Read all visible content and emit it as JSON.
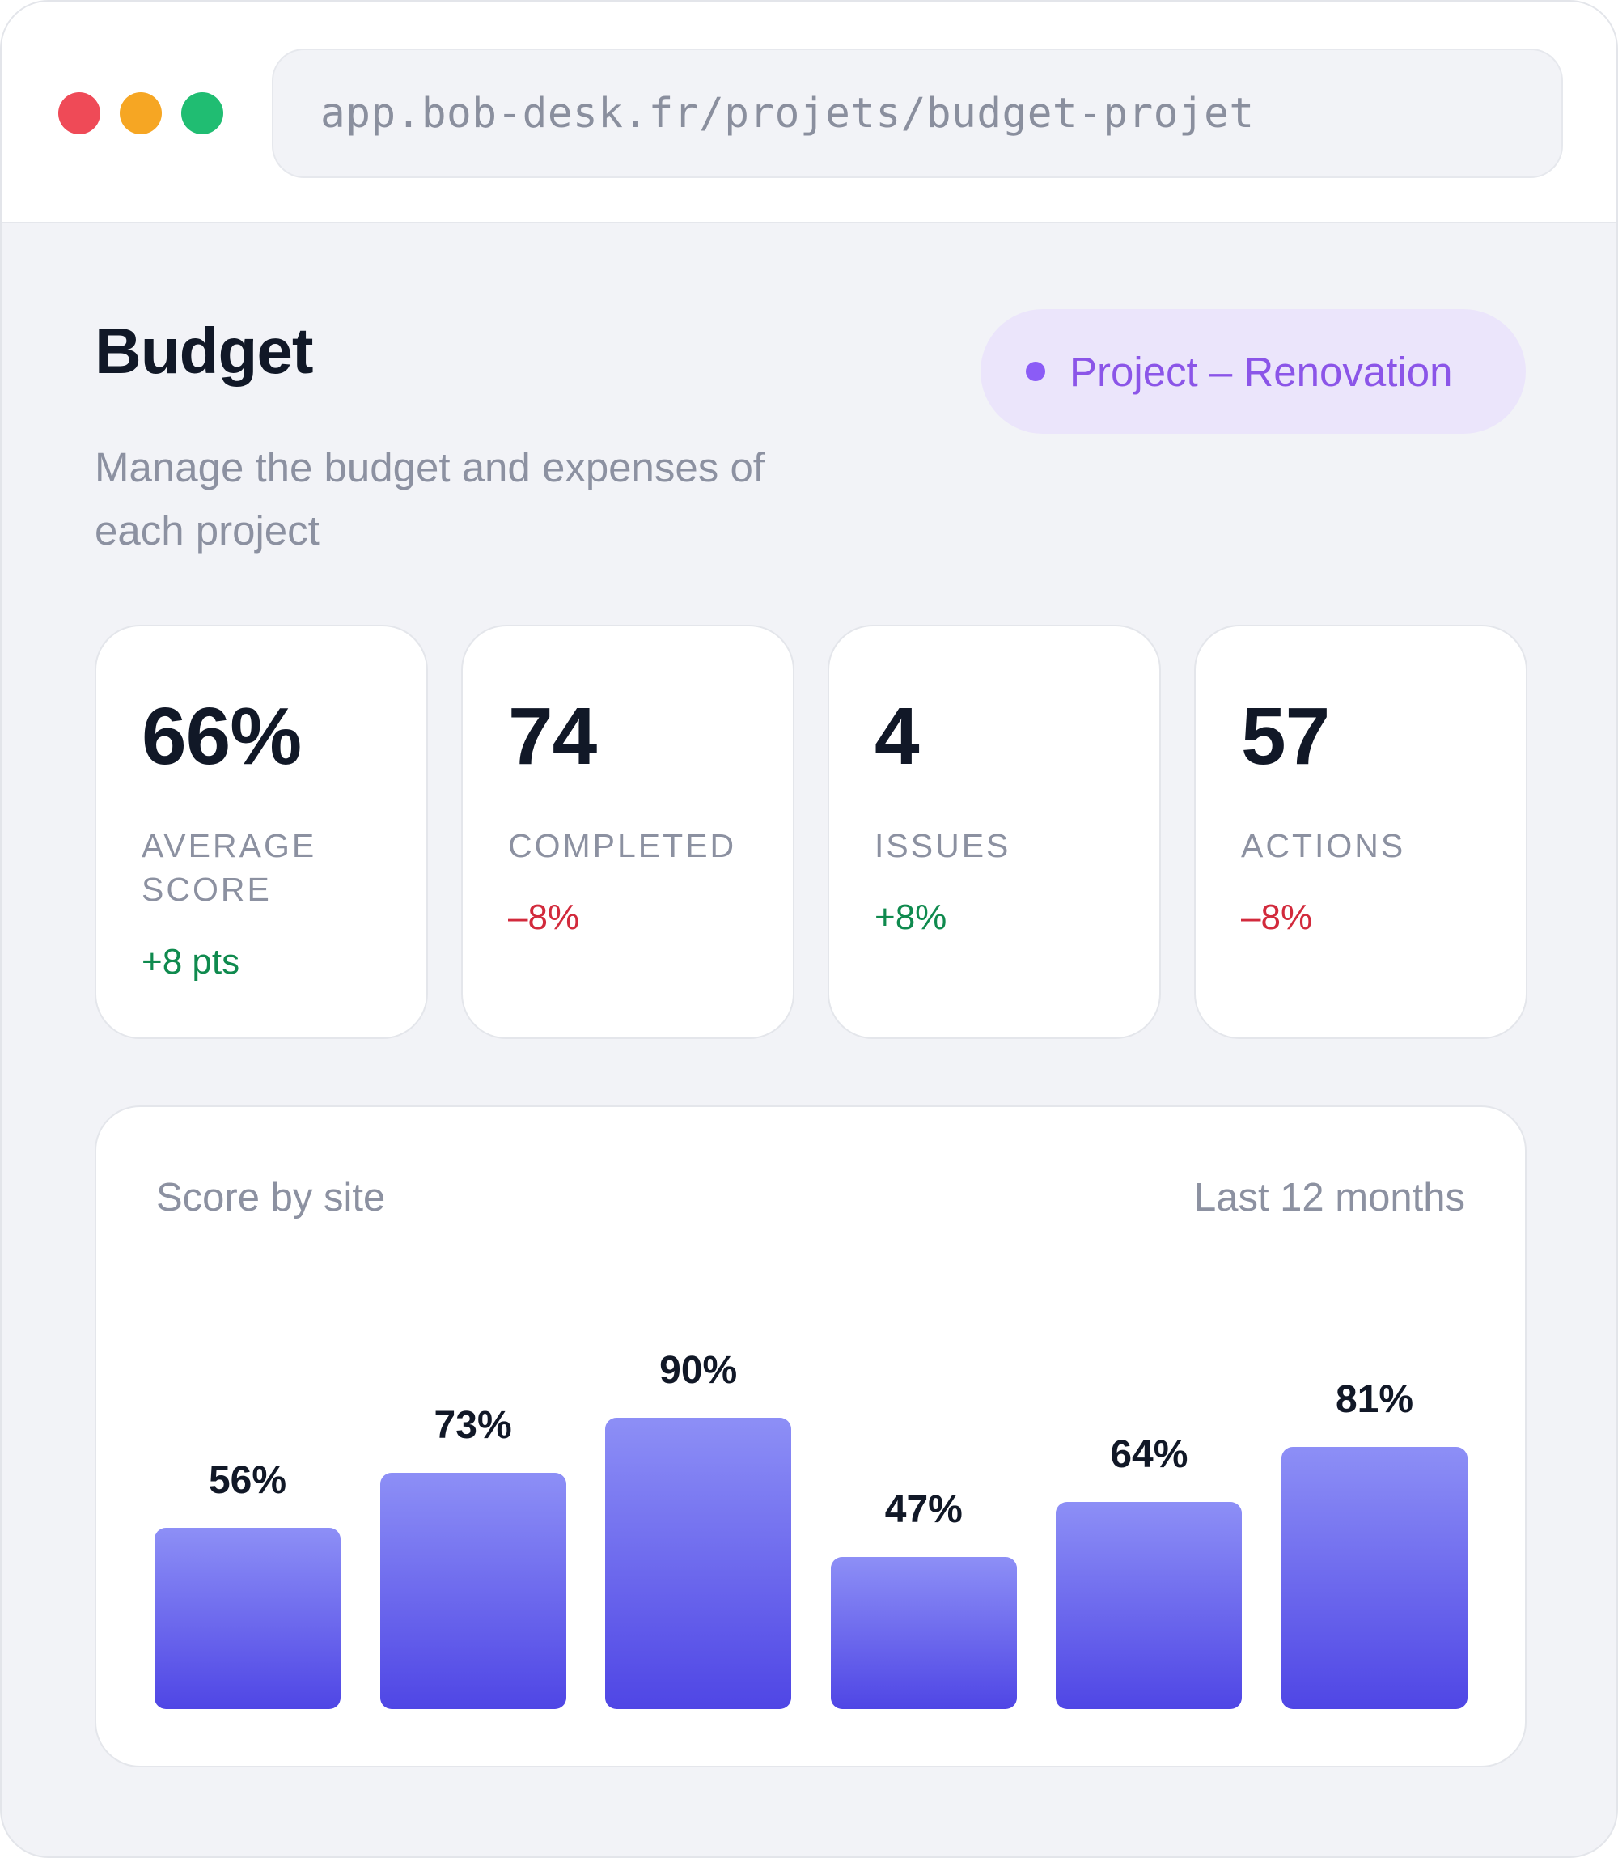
{
  "browser": {
    "url": "app.bob-desk.fr/projets/budget-projet"
  },
  "header": {
    "title": "Budget",
    "subtitle": "Manage the budget and expenses of each project",
    "project_badge": "Project – Renovation"
  },
  "stats": [
    {
      "value": "66%",
      "label": "AVERAGE SCORE",
      "delta": "+8 pts",
      "trend": "up"
    },
    {
      "value": "74",
      "label": "COMPLETED",
      "delta": "–8%",
      "trend": "down"
    },
    {
      "value": "4",
      "label": "ISSUES",
      "delta": "+8%",
      "trend": "up"
    },
    {
      "value": "57",
      "label": "ACTIONS",
      "delta": "–8%",
      "trend": "down"
    }
  ],
  "colors": {
    "accent": "#4f46e5",
    "accent_light": "#8d8ff6",
    "badge_bg": "#ebe5fb",
    "badge_text": "#8b55e8",
    "positive": "#0f8a4e",
    "negative": "#d22a3c"
  },
  "chart": {
    "title": "Score by site",
    "range": "Last 12 months"
  },
  "chart_data": {
    "type": "bar",
    "values": [
      56,
      73,
      90,
      47,
      64,
      81
    ],
    "value_labels": [
      "56%",
      "73%",
      "90%",
      "47%",
      "64%",
      "81%"
    ],
    "ylim": [
      0,
      100
    ],
    "grid": false
  }
}
